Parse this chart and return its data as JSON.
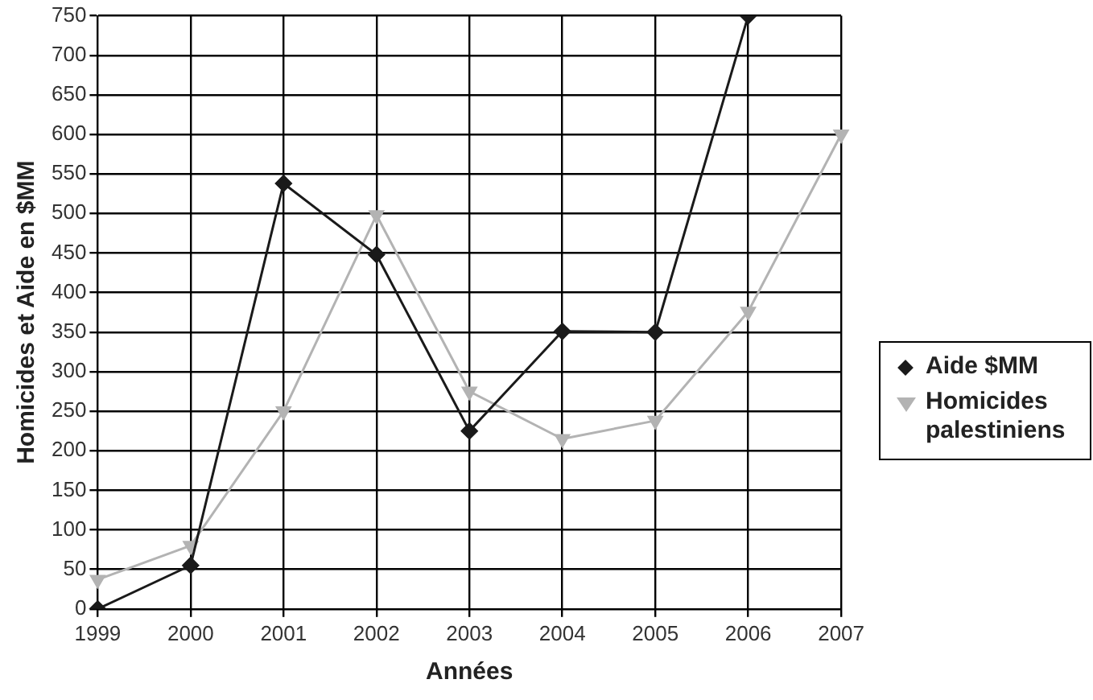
{
  "chart_data": {
    "type": "line",
    "xlabel": "Années",
    "ylabel": "Homicides et Aide en $MM",
    "categories": [
      "1999",
      "2000",
      "2001",
      "2002",
      "2003",
      "2004",
      "2005",
      "2006",
      "2007"
    ],
    "series": [
      {
        "name": "Aide $MM",
        "color": "#1a1a1a",
        "marker": "diamond",
        "values": [
          0,
          55,
          538,
          448,
          225,
          351,
          350,
          750,
          null
        ]
      },
      {
        "name": "Homicides palestiniens",
        "color": "#b3b3b3",
        "marker": "triangle",
        "values": [
          37,
          80,
          250,
          498,
          275,
          215,
          238,
          376,
          600
        ]
      }
    ],
    "ylim": [
      0,
      750
    ],
    "yticks": [
      0,
      50,
      100,
      150,
      200,
      250,
      300,
      350,
      400,
      450,
      500,
      550,
      600,
      650,
      700,
      750
    ],
    "grid": true,
    "legend": "right",
    "line_style": "solid"
  }
}
